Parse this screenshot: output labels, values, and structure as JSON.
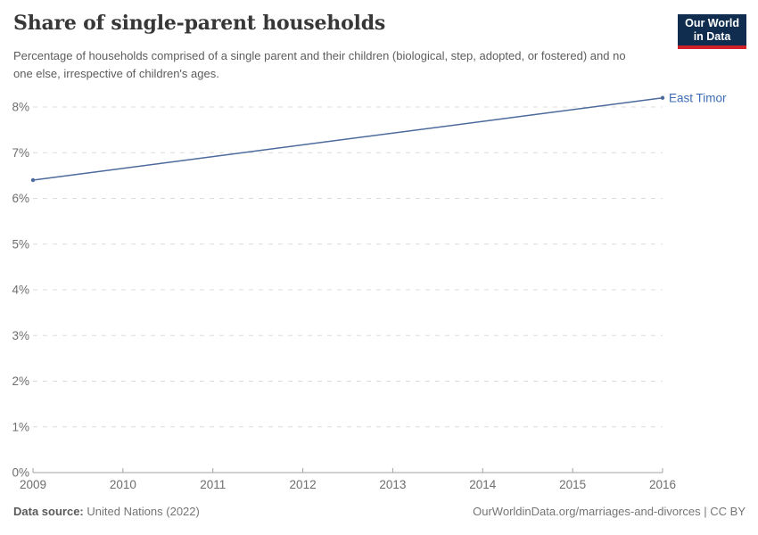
{
  "header": {
    "title": "Share of single-parent households",
    "subtitle": "Percentage of households comprised of a single parent and their children (biological, step, adopted, or fostered) and no one else, irrespective of children's ages."
  },
  "logo": {
    "line1": "Our World",
    "line2": "in Data",
    "bg_color": "#102d50",
    "accent_color": "#d02128"
  },
  "chart_data": {
    "type": "line",
    "title": "Share of single-parent households",
    "entity_label": "East Timor",
    "series": [
      {
        "name": "East Timor",
        "color": "#4c6a9c",
        "points": [
          {
            "x": 2009,
            "y": 6.4
          },
          {
            "x": 2016,
            "y": 8.2
          }
        ]
      }
    ],
    "x_range": [
      2009,
      2016
    ],
    "xticks": [
      2009,
      2010,
      2011,
      2012,
      2013,
      2014,
      2015,
      2016
    ],
    "yticks": [
      0,
      1,
      2,
      3,
      4,
      5,
      6,
      7,
      8
    ],
    "ytick_format": "{v}%",
    "ylim": [
      0,
      8
    ],
    "grid": "horizontal-dashed",
    "legend_position": "line-end-label",
    "entity_label_color": "#3c6cb4",
    "grid_color": "#dcdcdc",
    "axis_color": "#a1a1a1",
    "tick_label_color": "#6e6e6e"
  },
  "footer": {
    "source_label": "Data source:",
    "source_value": "United Nations (2022)",
    "link_text": "OurWorldinData.org/marriages-and-divorces | CC BY"
  }
}
